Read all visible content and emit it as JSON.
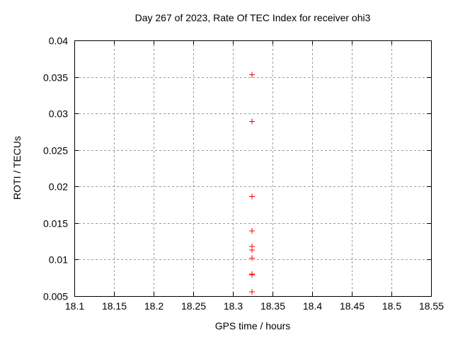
{
  "chart_data": {
    "type": "scatter",
    "title": "Day 267 of 2023, Rate Of TEC Index for receiver ohi3",
    "xlabel": "GPS time / hours",
    "ylabel": "ROTI / TECUs",
    "xlim": [
      18.1,
      18.55
    ],
    "ylim": [
      0.005,
      0.04
    ],
    "x_tick_labels": [
      "18.1",
      "18.15",
      "18.2",
      "18.25",
      "18.3",
      "18.35",
      "18.4",
      "18.45",
      "18.5",
      "18.55"
    ],
    "y_tick_labels": [
      "0.005",
      "0.01",
      "0.015",
      "0.02",
      "0.025",
      "0.03",
      "0.035",
      "0.04"
    ],
    "grid": true,
    "legend": "none",
    "marker": "plus",
    "points": [
      {
        "x": 18.324,
        "y": 0.0353
      },
      {
        "x": 18.324,
        "y": 0.0289
      },
      {
        "x": 18.324,
        "y": 0.0186
      },
      {
        "x": 18.324,
        "y": 0.0139
      },
      {
        "x": 18.324,
        "y": 0.0118
      },
      {
        "x": 18.324,
        "y": 0.0113
      },
      {
        "x": 18.324,
        "y": 0.0102
      },
      {
        "x": 18.324,
        "y": 0.008
      },
      {
        "x": 18.324,
        "y": 0.0079
      },
      {
        "x": 18.324,
        "y": 0.0056
      }
    ],
    "colors": {
      "marker": "#ff0000",
      "grid": "#9c9c9c",
      "frame": "#000000",
      "text": "#000000",
      "background": "#ffffff"
    }
  }
}
